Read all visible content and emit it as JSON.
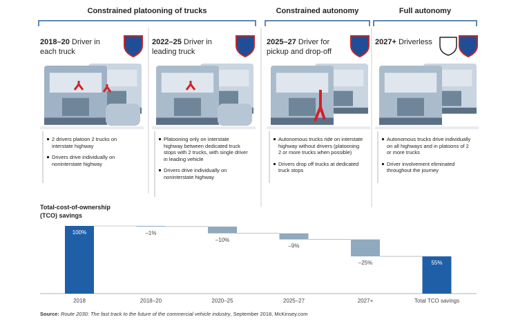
{
  "groups": [
    {
      "label": "Constrained platooning of trucks"
    },
    {
      "label": "Constrained autonomy"
    },
    {
      "label": "Full autonomy"
    }
  ],
  "panels": [
    {
      "period": "2018–20",
      "desc": "Driver in each truck",
      "bullets": [
        "2 drivers platoon 2 trucks on interstate highway",
        "Drivers drive individually on noninterstate highway"
      ]
    },
    {
      "period": "2022–25",
      "desc": "Driver in leading truck",
      "bullets": [
        "Platooning only on interstate highway between dedicated truck stops with 2 trucks, with single driver in leading vehicle",
        "Drivers drive individually on noninterstate highway"
      ]
    },
    {
      "period": "2025–27",
      "desc": "Driver for pickup and drop-off",
      "bullets": [
        "Autonomous trucks ride on interstate highway without drivers (platooning 2 or more trucks when possible)",
        "Drivers drop off trucks at dedicated truck stops"
      ]
    },
    {
      "period": "2027+",
      "desc": "Driverless",
      "bullets": [
        "Autonomous trucks drive individually on all highways and in platoons of 2 or more trucks",
        "Driver involvement eliminated throughout the journey"
      ]
    }
  ],
  "chart_data": {
    "type": "waterfall",
    "title": "Total-cost-of-ownership (TCO) savings",
    "categories": [
      "2018",
      "2018–20",
      "2020–25",
      "2025–27",
      "2027+",
      "Total TCO savings"
    ],
    "values": [
      100,
      -1,
      -10,
      -9,
      -25,
      55
    ],
    "value_labels": [
      "100%",
      "–1%",
      "–10%",
      "–9%",
      "–25%",
      "55%"
    ],
    "measure": [
      "absolute",
      "relative",
      "relative",
      "relative",
      "relative",
      "absolute"
    ],
    "colors": [
      "#1f5fa8",
      "#8fa9bf",
      "#8fa9bf",
      "#8fa9bf",
      "#8fa9bf",
      "#1f5fa8"
    ],
    "ylim": [
      0,
      100
    ]
  },
  "source": {
    "prefix": "Source: ",
    "title": "Route 2030: The fast track to the future of the commercial vehicle industry",
    "suffix": ", September 2018, McKinsey.com"
  }
}
